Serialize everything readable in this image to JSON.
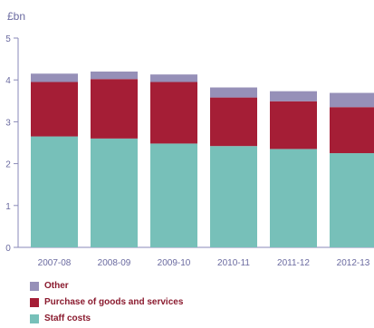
{
  "chart_data": {
    "type": "bar",
    "stacked": true,
    "unit_label": "£bn",
    "categories": [
      "2007-08",
      "2008-09",
      "2009-10",
      "2010-11",
      "2011-12",
      "2012-13"
    ],
    "series": [
      {
        "name": "Staff costs",
        "values": [
          2.65,
          2.6,
          2.48,
          2.42,
          2.35,
          2.25
        ],
        "color": "#77c0b9"
      },
      {
        "name": "Purchase of goods and services",
        "values": [
          1.3,
          1.42,
          1.47,
          1.16,
          1.14,
          1.1
        ],
        "color": "#a51e36"
      },
      {
        "name": "Other",
        "values": [
          0.2,
          0.18,
          0.18,
          0.24,
          0.24,
          0.34
        ],
        "color": "#9690b8"
      }
    ],
    "ylim": [
      0,
      5
    ],
    "yticks": [
      "0",
      "1",
      "2",
      "3",
      "4",
      "5"
    ],
    "grid": false,
    "legend_position": "bottom-left"
  },
  "legend": [
    {
      "label": "Other",
      "color": "#9690b8"
    },
    {
      "label": "Purchase of goods and services",
      "color": "#a51e36"
    },
    {
      "label": "Staff costs",
      "color": "#77c0b9"
    }
  ]
}
